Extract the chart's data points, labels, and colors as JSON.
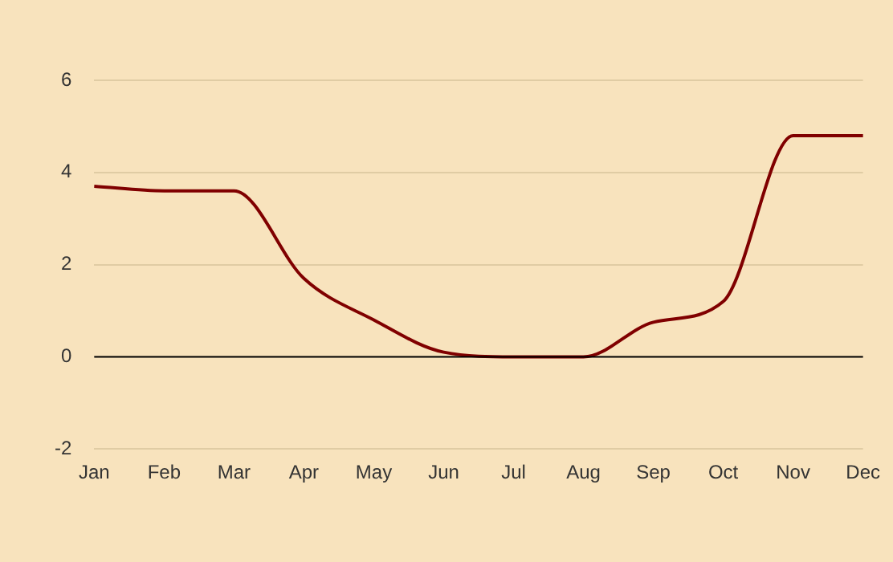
{
  "chart_data": {
    "type": "line",
    "categories": [
      "Jan",
      "Feb",
      "Mar",
      "Apr",
      "May",
      "Jun",
      "Jul",
      "Aug",
      "Sep",
      "Oct",
      "Nov",
      "Dec"
    ],
    "series": [
      {
        "color": "#800000",
        "values": [
          3.7,
          3.6,
          3.6,
          1.7,
          0.8,
          0.1,
          0,
          0,
          0.75,
          1.2,
          4.8,
          4.8
        ]
      }
    ],
    "ylim": [
      -2,
      6
    ],
    "yticks": [
      -2,
      0,
      2,
      4,
      6
    ],
    "grid": "y",
    "legend": false,
    "marker": "none",
    "line_style": "solid",
    "ref_lines": [
      {
        "axis": "y",
        "value": 0,
        "color": "#000000"
      }
    ]
  }
}
